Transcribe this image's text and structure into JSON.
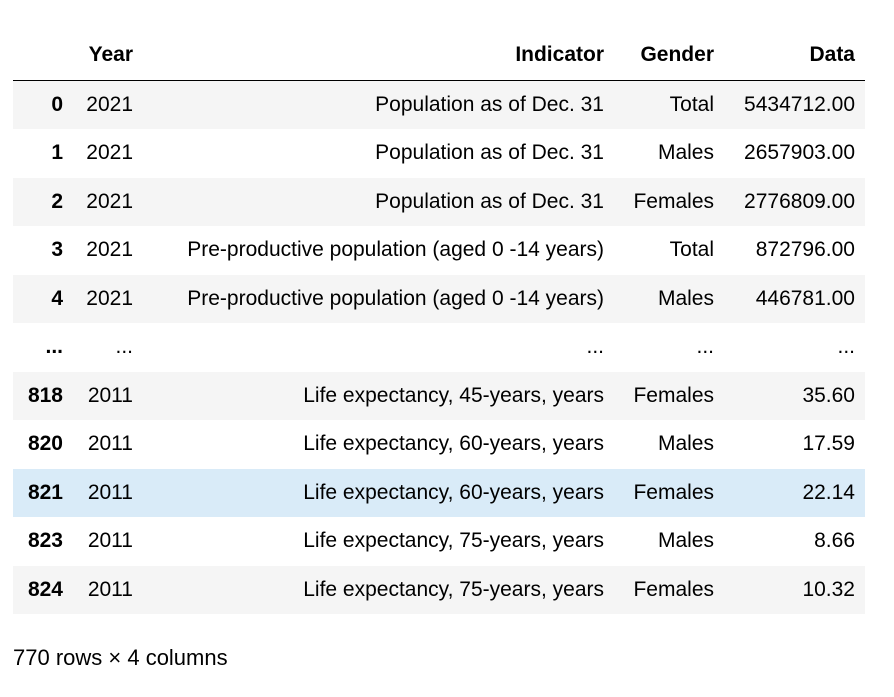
{
  "table": {
    "index_header": "",
    "columns": [
      "Year",
      "Indicator",
      "Gender",
      "Data"
    ],
    "rows": [
      {
        "index": "0",
        "year": "2021",
        "indicator": "Population as of Dec. 31",
        "gender": "Total",
        "data": "5434712.00"
      },
      {
        "index": "1",
        "year": "2021",
        "indicator": "Population as of Dec. 31",
        "gender": "Males",
        "data": "2657903.00"
      },
      {
        "index": "2",
        "year": "2021",
        "indicator": "Population as of Dec. 31",
        "gender": "Females",
        "data": "2776809.00"
      },
      {
        "index": "3",
        "year": "2021",
        "indicator": "Pre-productive population (aged 0 -14 years)",
        "gender": "Total",
        "data": "872796.00"
      },
      {
        "index": "4",
        "year": "2021",
        "indicator": "Pre-productive population (aged 0 -14 years)",
        "gender": "Males",
        "data": "446781.00"
      },
      {
        "index": "...",
        "year": "...",
        "indicator": "...",
        "gender": "...",
        "data": "..."
      },
      {
        "index": "818",
        "year": "2011",
        "indicator": "Life expectancy, 45-years, years",
        "gender": "Females",
        "data": "35.60"
      },
      {
        "index": "820",
        "year": "2011",
        "indicator": "Life expectancy, 60-years, years",
        "gender": "Males",
        "data": "17.59"
      },
      {
        "index": "821",
        "year": "2011",
        "indicator": "Life expectancy, 60-years, years",
        "gender": "Females",
        "data": "22.14"
      },
      {
        "index": "823",
        "year": "2011",
        "indicator": "Life expectancy, 75-years, years",
        "gender": "Males",
        "data": "8.66"
      },
      {
        "index": "824",
        "year": "2011",
        "indicator": "Life expectancy, 75-years, years",
        "gender": "Females",
        "data": "10.32"
      }
    ],
    "hovered_row_index": "821",
    "shape_caption": "770 rows × 4 columns"
  },
  "colors": {
    "row_stripe": "#f5f5f5",
    "row_hover": "#d9ebf8",
    "header_rule": "#000000"
  }
}
